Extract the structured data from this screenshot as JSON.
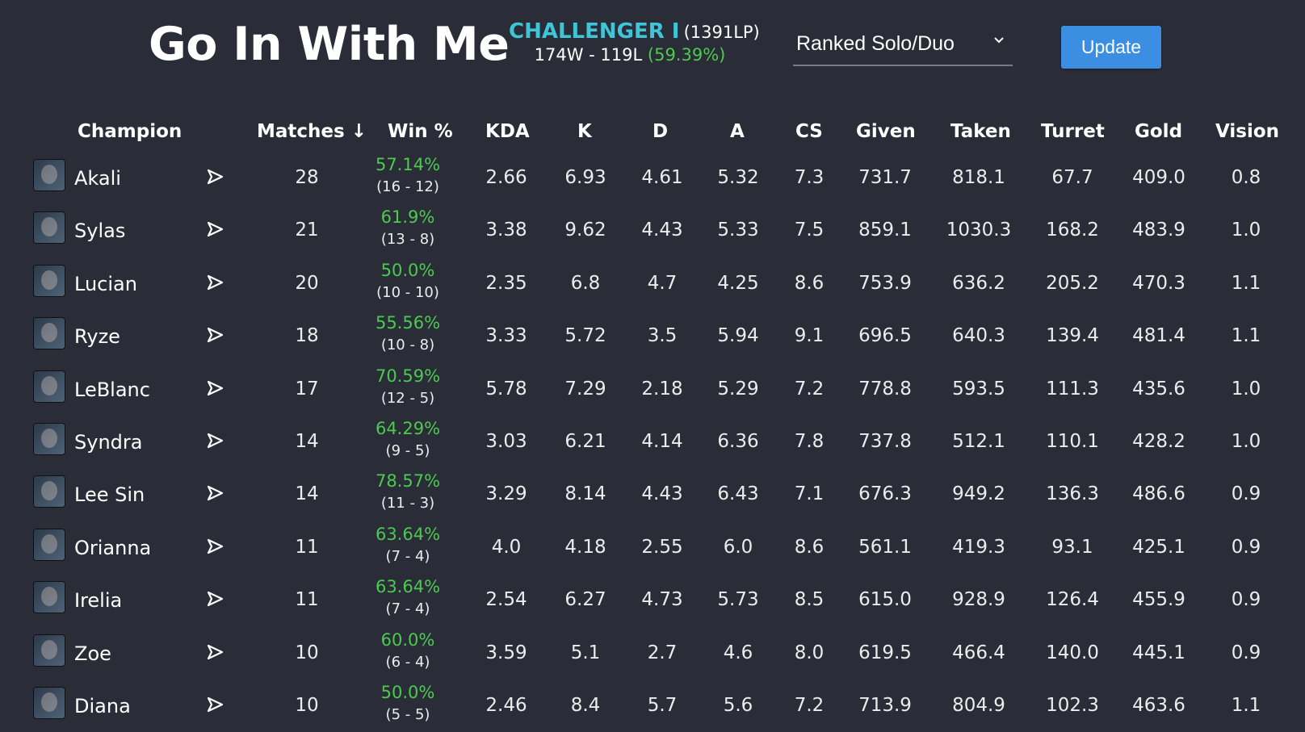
{
  "profile": {
    "summoner_name": "Go In With Me",
    "rank_tier": "CHALLENGER I",
    "rank_lp": "(1391LP)",
    "record": "174W - 119L",
    "win_rate": "(59.39%)"
  },
  "controls": {
    "queue_selected": "Ranked Solo/Duo",
    "update_label": "Update"
  },
  "table": {
    "headers": {
      "champion": "Champion",
      "matches": "Matches ↓",
      "win": "Win %",
      "kda": "KDA",
      "k": "K",
      "d": "D",
      "a": "A",
      "cs": "CS",
      "given": "Given",
      "taken": "Taken",
      "turret": "Turret",
      "gold": "Gold",
      "vision": "Vision"
    },
    "rows": [
      {
        "champion": "Akali",
        "matches": "28",
        "win_pct": "57.14%",
        "win_loss": "(16 - 12)",
        "kda": "2.66",
        "k": "6.93",
        "d": "4.61",
        "a": "5.32",
        "cs": "7.3",
        "given": "731.7",
        "taken": "818.1",
        "turret": "67.7",
        "gold": "409.0",
        "vision": "0.8"
      },
      {
        "champion": "Sylas",
        "matches": "21",
        "win_pct": "61.9%",
        "win_loss": "(13 - 8)",
        "kda": "3.38",
        "k": "9.62",
        "d": "4.43",
        "a": "5.33",
        "cs": "7.5",
        "given": "859.1",
        "taken": "1030.3",
        "turret": "168.2",
        "gold": "483.9",
        "vision": "1.0"
      },
      {
        "champion": "Lucian",
        "matches": "20",
        "win_pct": "50.0%",
        "win_loss": "(10 - 10)",
        "kda": "2.35",
        "k": "6.8",
        "d": "4.7",
        "a": "4.25",
        "cs": "8.6",
        "given": "753.9",
        "taken": "636.2",
        "turret": "205.2",
        "gold": "470.3",
        "vision": "1.1"
      },
      {
        "champion": "Ryze",
        "matches": "18",
        "win_pct": "55.56%",
        "win_loss": "(10 - 8)",
        "kda": "3.33",
        "k": "5.72",
        "d": "3.5",
        "a": "5.94",
        "cs": "9.1",
        "given": "696.5",
        "taken": "640.3",
        "turret": "139.4",
        "gold": "481.4",
        "vision": "1.1"
      },
      {
        "champion": "LeBlanc",
        "matches": "17",
        "win_pct": "70.59%",
        "win_loss": "(12 - 5)",
        "kda": "5.78",
        "k": "7.29",
        "d": "2.18",
        "a": "5.29",
        "cs": "7.2",
        "given": "778.8",
        "taken": "593.5",
        "turret": "111.3",
        "gold": "435.6",
        "vision": "1.0"
      },
      {
        "champion": "Syndra",
        "matches": "14",
        "win_pct": "64.29%",
        "win_loss": "(9 - 5)",
        "kda": "3.03",
        "k": "6.21",
        "d": "4.14",
        "a": "6.36",
        "cs": "7.8",
        "given": "737.8",
        "taken": "512.1",
        "turret": "110.1",
        "gold": "428.2",
        "vision": "1.0"
      },
      {
        "champion": "Lee Sin",
        "matches": "14",
        "win_pct": "78.57%",
        "win_loss": "(11 - 3)",
        "kda": "3.29",
        "k": "8.14",
        "d": "4.43",
        "a": "6.43",
        "cs": "7.1",
        "given": "676.3",
        "taken": "949.2",
        "turret": "136.3",
        "gold": "486.6",
        "vision": "0.9"
      },
      {
        "champion": "Orianna",
        "matches": "11",
        "win_pct": "63.64%",
        "win_loss": "(7 - 4)",
        "kda": "4.0",
        "k": "4.18",
        "d": "2.55",
        "a": "6.0",
        "cs": "8.6",
        "given": "561.1",
        "taken": "419.3",
        "turret": "93.1",
        "gold": "425.1",
        "vision": "0.9"
      },
      {
        "champion": "Irelia",
        "matches": "11",
        "win_pct": "63.64%",
        "win_loss": "(7 - 4)",
        "kda": "2.54",
        "k": "6.27",
        "d": "4.73",
        "a": "5.73",
        "cs": "8.5",
        "given": "615.0",
        "taken": "928.9",
        "turret": "126.4",
        "gold": "455.9",
        "vision": "0.9"
      },
      {
        "champion": "Zoe",
        "matches": "10",
        "win_pct": "60.0%",
        "win_loss": "(6 - 4)",
        "kda": "3.59",
        "k": "5.1",
        "d": "2.7",
        "a": "4.6",
        "cs": "8.0",
        "given": "619.5",
        "taken": "466.4",
        "turret": "140.0",
        "gold": "445.1",
        "vision": "0.9"
      },
      {
        "champion": "Diana",
        "matches": "10",
        "win_pct": "50.0%",
        "win_loss": "(5 - 5)",
        "kda": "2.46",
        "k": "8.4",
        "d": "5.7",
        "a": "5.6",
        "cs": "7.2",
        "given": "713.9",
        "taken": "804.9",
        "turret": "102.3",
        "gold": "463.6",
        "vision": "1.1"
      }
    ]
  },
  "colors": {
    "background": "#2a2c38",
    "rank_accent": "#3fc6d6",
    "win_green": "#4cca4f",
    "button_blue": "#3c8ee2"
  },
  "icons": {
    "row_action": "send-arrow-icon",
    "dropdown": "chevron-down-icon",
    "champion_portrait": "champion-portrait-icon"
  }
}
